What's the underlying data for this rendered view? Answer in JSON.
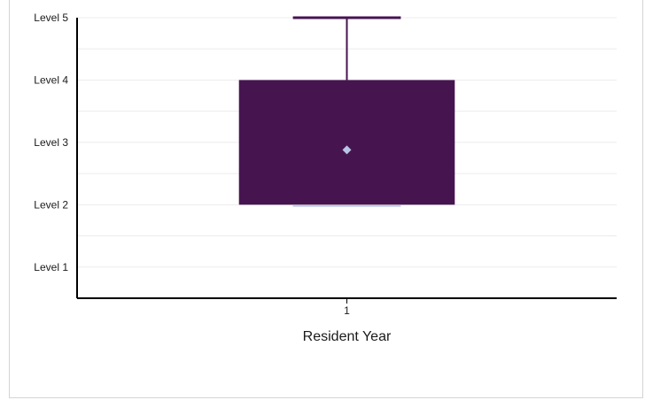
{
  "chart_data": {
    "type": "box",
    "xlabel": "Resident Year",
    "categories": [
      "1"
    ],
    "y_tick_labels": [
      "Level 1",
      "Level 2",
      "Level 3",
      "Level 4",
      "Level 5"
    ],
    "ylim": [
      0.5,
      5
    ],
    "grid": true,
    "boxes": [
      {
        "category": "1",
        "min": 2,
        "q1": 2,
        "q3": 4,
        "max": 5,
        "mean": 2.88
      }
    ],
    "colors": {
      "box": "#461550",
      "mean_marker": "#b8c4e6",
      "grid": "#ececec",
      "axis": "#000000"
    }
  }
}
